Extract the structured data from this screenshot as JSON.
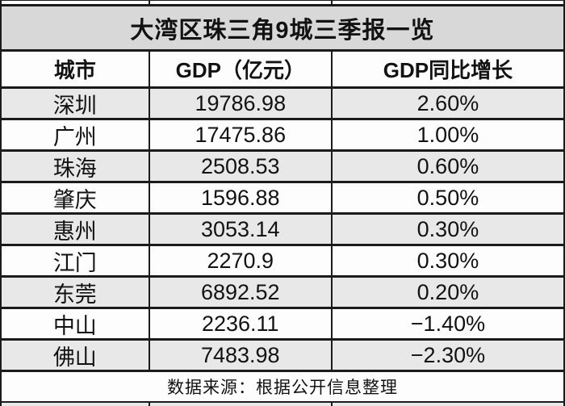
{
  "chart_data": {
    "type": "table",
    "title": "大湾区珠三角9城三季报一览",
    "columns": [
      "城市",
      "GDP（亿元）",
      "GDP同比增长"
    ],
    "rows": [
      [
        "深圳",
        "19786.98",
        "2.60%"
      ],
      [
        "广州",
        "17475.86",
        "1.00%"
      ],
      [
        "珠海",
        "2508.53",
        "0.60%"
      ],
      [
        "肇庆",
        "1596.88",
        "0.50%"
      ],
      [
        "惠州",
        "3053.14",
        "0.30%"
      ],
      [
        "江门",
        "2270.9",
        "0.30%"
      ],
      [
        "东莞",
        "6892.52",
        "0.20%"
      ],
      [
        "中山",
        "2236.11",
        "−1.40%"
      ],
      [
        "佛山",
        "7483.98",
        "−2.30%"
      ]
    ],
    "source_note": "数据来源：根据公开信息整理",
    "layout": {
      "grid": "on",
      "row_striping": "alternating starting gray"
    },
    "colors": {
      "title_band_bg": "#d8d8d8",
      "alt_row_bg": "#e8e8e8",
      "row_bg": "#fdfdfd",
      "border": "#1b1b1b",
      "text": "#121212"
    }
  }
}
